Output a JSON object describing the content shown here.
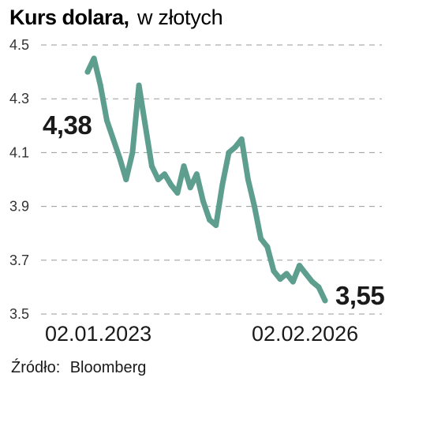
{
  "chart_data": {
    "type": "line",
    "title": "Kurs dolara,",
    "subtitle": "w złotych",
    "xlabel": "",
    "ylabel": "",
    "ylim": [
      3.5,
      4.5
    ],
    "yticks": [
      "4.5",
      "4.3",
      "4.1",
      "3.9",
      "3.7",
      "3.5"
    ],
    "ytick_values": [
      4.5,
      4.3,
      4.1,
      3.9,
      3.7,
      3.5
    ],
    "grid": true,
    "x_start_label": "02.01.2023",
    "x_end_label": "02.02.2026",
    "start_value_label": "4,38",
    "end_value_label": "3,55",
    "line_color": "#5e9e8e",
    "source_label": "Źródło:",
    "source_name": "Bloomberg",
    "series": [
      {
        "x": [
          "2023-01",
          "2023-02",
          "2023-03",
          "2023-04",
          "2023-05",
          "2023-06",
          "2023-07",
          "2023-08",
          "2023-09",
          "2023-10",
          "2023-11",
          "2023-12",
          "2024-01",
          "2024-02",
          "2024-03",
          "2024-04",
          "2024-05",
          "2024-06",
          "2024-07",
          "2024-08",
          "2024-09",
          "2024-10",
          "2024-11",
          "2024-12",
          "2025-01",
          "2025-02",
          "2025-03",
          "2025-04",
          "2025-05",
          "2025-06",
          "2025-07",
          "2025-08",
          "2025-09",
          "2025-10",
          "2025-11",
          "2025-12",
          "2026-01",
          "2026-02"
        ],
        "y": [
          4.4,
          4.45,
          4.35,
          4.22,
          4.15,
          4.08,
          4.0,
          4.1,
          4.35,
          4.2,
          4.05,
          4.0,
          4.02,
          3.98,
          3.95,
          4.05,
          3.97,
          4.02,
          3.92,
          3.85,
          3.83,
          3.98,
          4.1,
          4.12,
          4.15,
          4.0,
          3.9,
          3.78,
          3.75,
          3.66,
          3.63,
          3.65,
          3.62,
          3.68,
          3.65,
          3.62,
          3.6,
          3.55
        ]
      }
    ]
  }
}
